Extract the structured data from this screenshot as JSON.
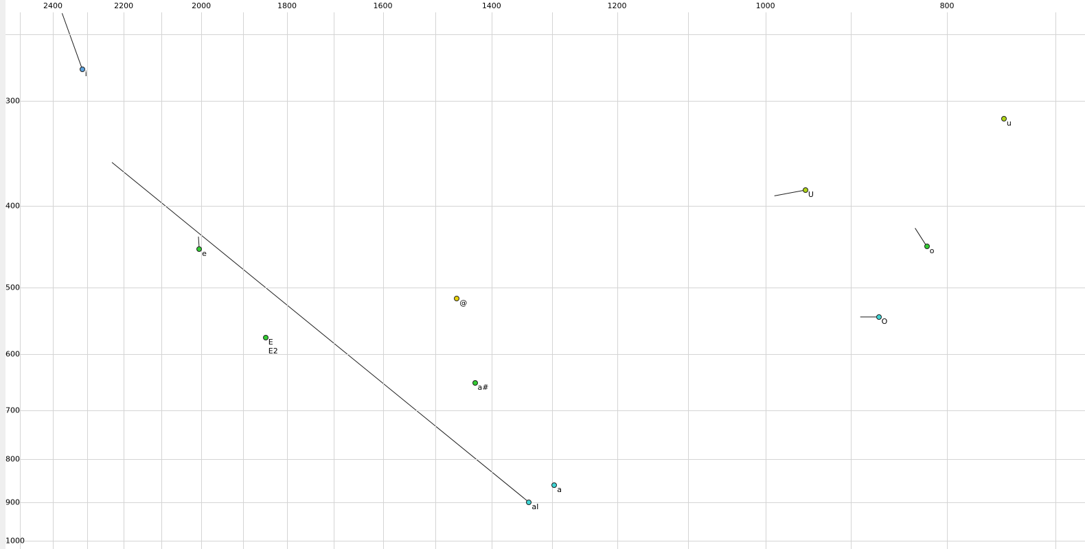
{
  "chart_data": {
    "type": "scatter",
    "title": "",
    "x_axis": {
      "scale": "log",
      "reversed": true,
      "tick_labels": [
        2400,
        2200,
        2000,
        1800,
        1600,
        1400,
        1200,
        1000,
        800
      ],
      "gridlines": [
        2500,
        2400,
        2300,
        2200,
        2100,
        2000,
        1900,
        1800,
        1700,
        1600,
        1500,
        1400,
        1300,
        1200,
        1100,
        1000,
        900,
        800,
        700
      ],
      "range": [
        2550,
        680
      ]
    },
    "y_axis": {
      "scale": "log",
      "reversed": false,
      "tick_labels": [
        300,
        400,
        500,
        600,
        700,
        800,
        900,
        1000
      ],
      "gridlines": [
        250,
        300,
        400,
        500,
        600,
        700,
        800,
        900,
        1000
      ],
      "range": [
        240,
        1025
      ]
    },
    "grid": "on",
    "legend": "none",
    "colors": {
      "green": "#33cc33",
      "yellow_green": "#aed317",
      "yellow": "#e8d20c",
      "cyan": "#3fd4d4",
      "blue": "#5da2dd"
    },
    "points": [
      {
        "labels": [
          "i"
        ],
        "f2": 2315,
        "f1": 275,
        "color": "#5da2dd",
        "trail": {
          "f2": 2373,
          "f1": 236
        }
      },
      {
        "labels": [
          "u"
        ],
        "f2": 746,
        "f1": 315,
        "color": "#aed317"
      },
      {
        "labels": [
          "U"
        ],
        "f2": 952,
        "f1": 383,
        "color": "#aed317",
        "trail": {
          "f2": 989,
          "f1": 389
        }
      },
      {
        "labels": [
          "o"
        ],
        "f2": 820,
        "f1": 447,
        "color": "#33cc33",
        "trail": {
          "f2": 832,
          "f1": 425
        }
      },
      {
        "labels": [
          "e"
        ],
        "f2": 2005,
        "f1": 450,
        "color": "#33cc33",
        "trail": {
          "f2": 2007,
          "f1": 435
        }
      },
      {
        "labels": [
          "@"
        ],
        "f2": 1461,
        "f1": 515,
        "color": "#e8d20c"
      },
      {
        "labels": [
          "O"
        ],
        "f2": 870,
        "f1": 542,
        "color": "#3fd4d4",
        "trail": {
          "f2": 890,
          "f1": 542
        }
      },
      {
        "labels": [
          "E",
          "E2"
        ],
        "f2": 1848,
        "f1": 573,
        "color": "#33cc33"
      },
      {
        "labels": [
          "a#"
        ],
        "f2": 1429,
        "f1": 649,
        "color": "#33cc33"
      },
      {
        "labels": [
          "a"
        ],
        "f2": 1296,
        "f1": 859,
        "color": "#3fd4d4"
      },
      {
        "labels": [
          "aI"
        ],
        "f2": 1337,
        "f1": 900,
        "color": "#3fd4d4",
        "trail": {
          "f2": 2232,
          "f1": 355
        }
      }
    ]
  }
}
